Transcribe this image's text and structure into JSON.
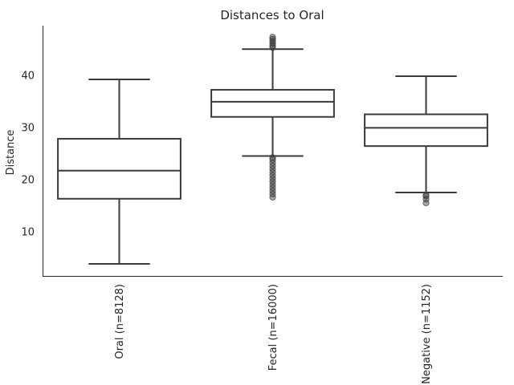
{
  "chart_data": {
    "type": "box",
    "title": "Distances to Oral",
    "xlabel": "",
    "ylabel": "Distance",
    "ylim": [
      1.5,
      49.5
    ],
    "yticks": [
      10,
      20,
      30,
      40
    ],
    "grid": false,
    "categories": [
      "Oral (n=8128)",
      "Fecal (n=16000)",
      "Negative (n=1152)"
    ],
    "boxes": [
      {
        "category": "Oral (n=8128)",
        "whisker_low": 3.8,
        "q1": 16.3,
        "median": 21.7,
        "q3": 27.8,
        "whisker_high": 39.2,
        "outliers": []
      },
      {
        "category": "Fecal (n=16000)",
        "whisker_low": 24.5,
        "q1": 32.0,
        "median": 34.9,
        "q3": 37.2,
        "whisker_high": 45.0,
        "outliers": [
          16.6,
          17.2,
          17.8,
          18.4,
          19.0,
          19.6,
          20.2,
          20.8,
          21.4,
          22.0,
          22.6,
          23.2,
          23.8,
          24.2,
          45.3,
          45.7,
          46.1,
          46.5,
          46.9,
          47.3
        ]
      },
      {
        "category": "Negative (n=1152)",
        "whisker_low": 17.5,
        "q1": 26.4,
        "median": 29.9,
        "q3": 32.5,
        "whisker_high": 39.8,
        "outliers": [
          15.5,
          16.2,
          16.8,
          17.0
        ]
      }
    ],
    "colors": {
      "box_edge": "#3a3a3a",
      "box_fill": "#ffffff",
      "outlier": "#3a3a3a",
      "axis": "#262626",
      "text": "#262626"
    }
  }
}
